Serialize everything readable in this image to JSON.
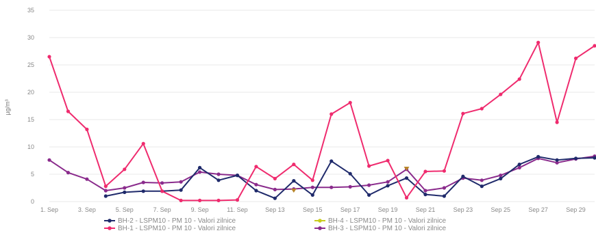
{
  "chart_data": {
    "type": "line",
    "ylabel": "µg/m³",
    "ylim": [
      0,
      35
    ],
    "yticks": [
      0,
      5,
      10,
      15,
      20,
      25,
      30,
      35
    ],
    "grid": true,
    "legend_position": "bottom",
    "x_tick_labels": [
      "1. Sep",
      "3. Sep",
      "5. Sep",
      "7. Sep",
      "9. Sep",
      "11. Sep",
      "Sep 13",
      "Sep 15",
      "Sep 17",
      "Sep 19",
      "Sep 21",
      "Sep 23",
      "Sep 25",
      "Sep 27",
      "Sep 29"
    ],
    "x_day_range": [
      1,
      30
    ],
    "series": [
      {
        "name": "BH-2 - LSPM10 - PM 10 - Valori zilnice",
        "color": "#1f2a6b",
        "x": [
          4,
          5,
          6,
          7,
          8,
          9,
          10,
          11,
          12,
          13,
          14,
          15,
          16,
          17,
          18,
          19,
          20,
          21,
          22,
          23,
          24,
          25,
          26,
          27,
          28,
          29,
          30
        ],
        "values": [
          1.0,
          1.7,
          1.9,
          1.9,
          2.1,
          6.2,
          3.9,
          4.8,
          2.0,
          0.6,
          3.8,
          1.2,
          7.4,
          5.1,
          1.2,
          2.9,
          4.3,
          1.3,
          1.0,
          4.6,
          2.8,
          4.2,
          6.8,
          8.2,
          7.6,
          7.9,
          8.0
        ]
      },
      {
        "name": "BH-1 - LSPM10 - PM 10 - Valori zilnice",
        "color": "#ef2b6e",
        "x": [
          1,
          2,
          3,
          4,
          5,
          6,
          7,
          8,
          9,
          10,
          11,
          12,
          13,
          14,
          15,
          16,
          17,
          18,
          19,
          20,
          21,
          22,
          23,
          24,
          25,
          26,
          27,
          28,
          29,
          30
        ],
        "values": [
          26.5,
          16.5,
          13.2,
          2.8,
          5.9,
          10.6,
          1.9,
          0.2,
          0.2,
          0.2,
          0.3,
          6.4,
          4.2,
          6.8,
          3.9,
          16.0,
          18.1,
          6.5,
          7.5,
          0.7,
          5.5,
          5.6,
          16.1,
          17.0,
          19.6,
          22.4,
          29.1,
          14.5,
          26.2,
          28.5
        ]
      },
      {
        "name": "BH-4 - LSPM10 - PM 10 - Valori zilnice",
        "color": "#c9cc1c",
        "x": [
          14,
          20
        ],
        "values": [
          2.0,
          6.0
        ]
      },
      {
        "name": "BH-3 - LSPM10 - PM 10 - Valori zilnice",
        "color": "#8a2b8c",
        "x": [
          1,
          2,
          3,
          4,
          5,
          6,
          7,
          8,
          9,
          10,
          11,
          12,
          13,
          14,
          15,
          16,
          17,
          18,
          19,
          20,
          21,
          22,
          23,
          24,
          25,
          26,
          27,
          28,
          29,
          30
        ],
        "values": [
          7.6,
          5.3,
          4.1,
          2.0,
          2.5,
          3.5,
          3.4,
          3.6,
          5.4,
          5.0,
          4.8,
          3.1,
          2.2,
          2.3,
          2.6,
          2.6,
          2.7,
          3.0,
          3.6,
          5.9,
          2.0,
          2.5,
          4.3,
          3.9,
          4.8,
          6.2,
          7.9,
          7.1,
          7.8,
          8.3
        ]
      }
    ]
  }
}
